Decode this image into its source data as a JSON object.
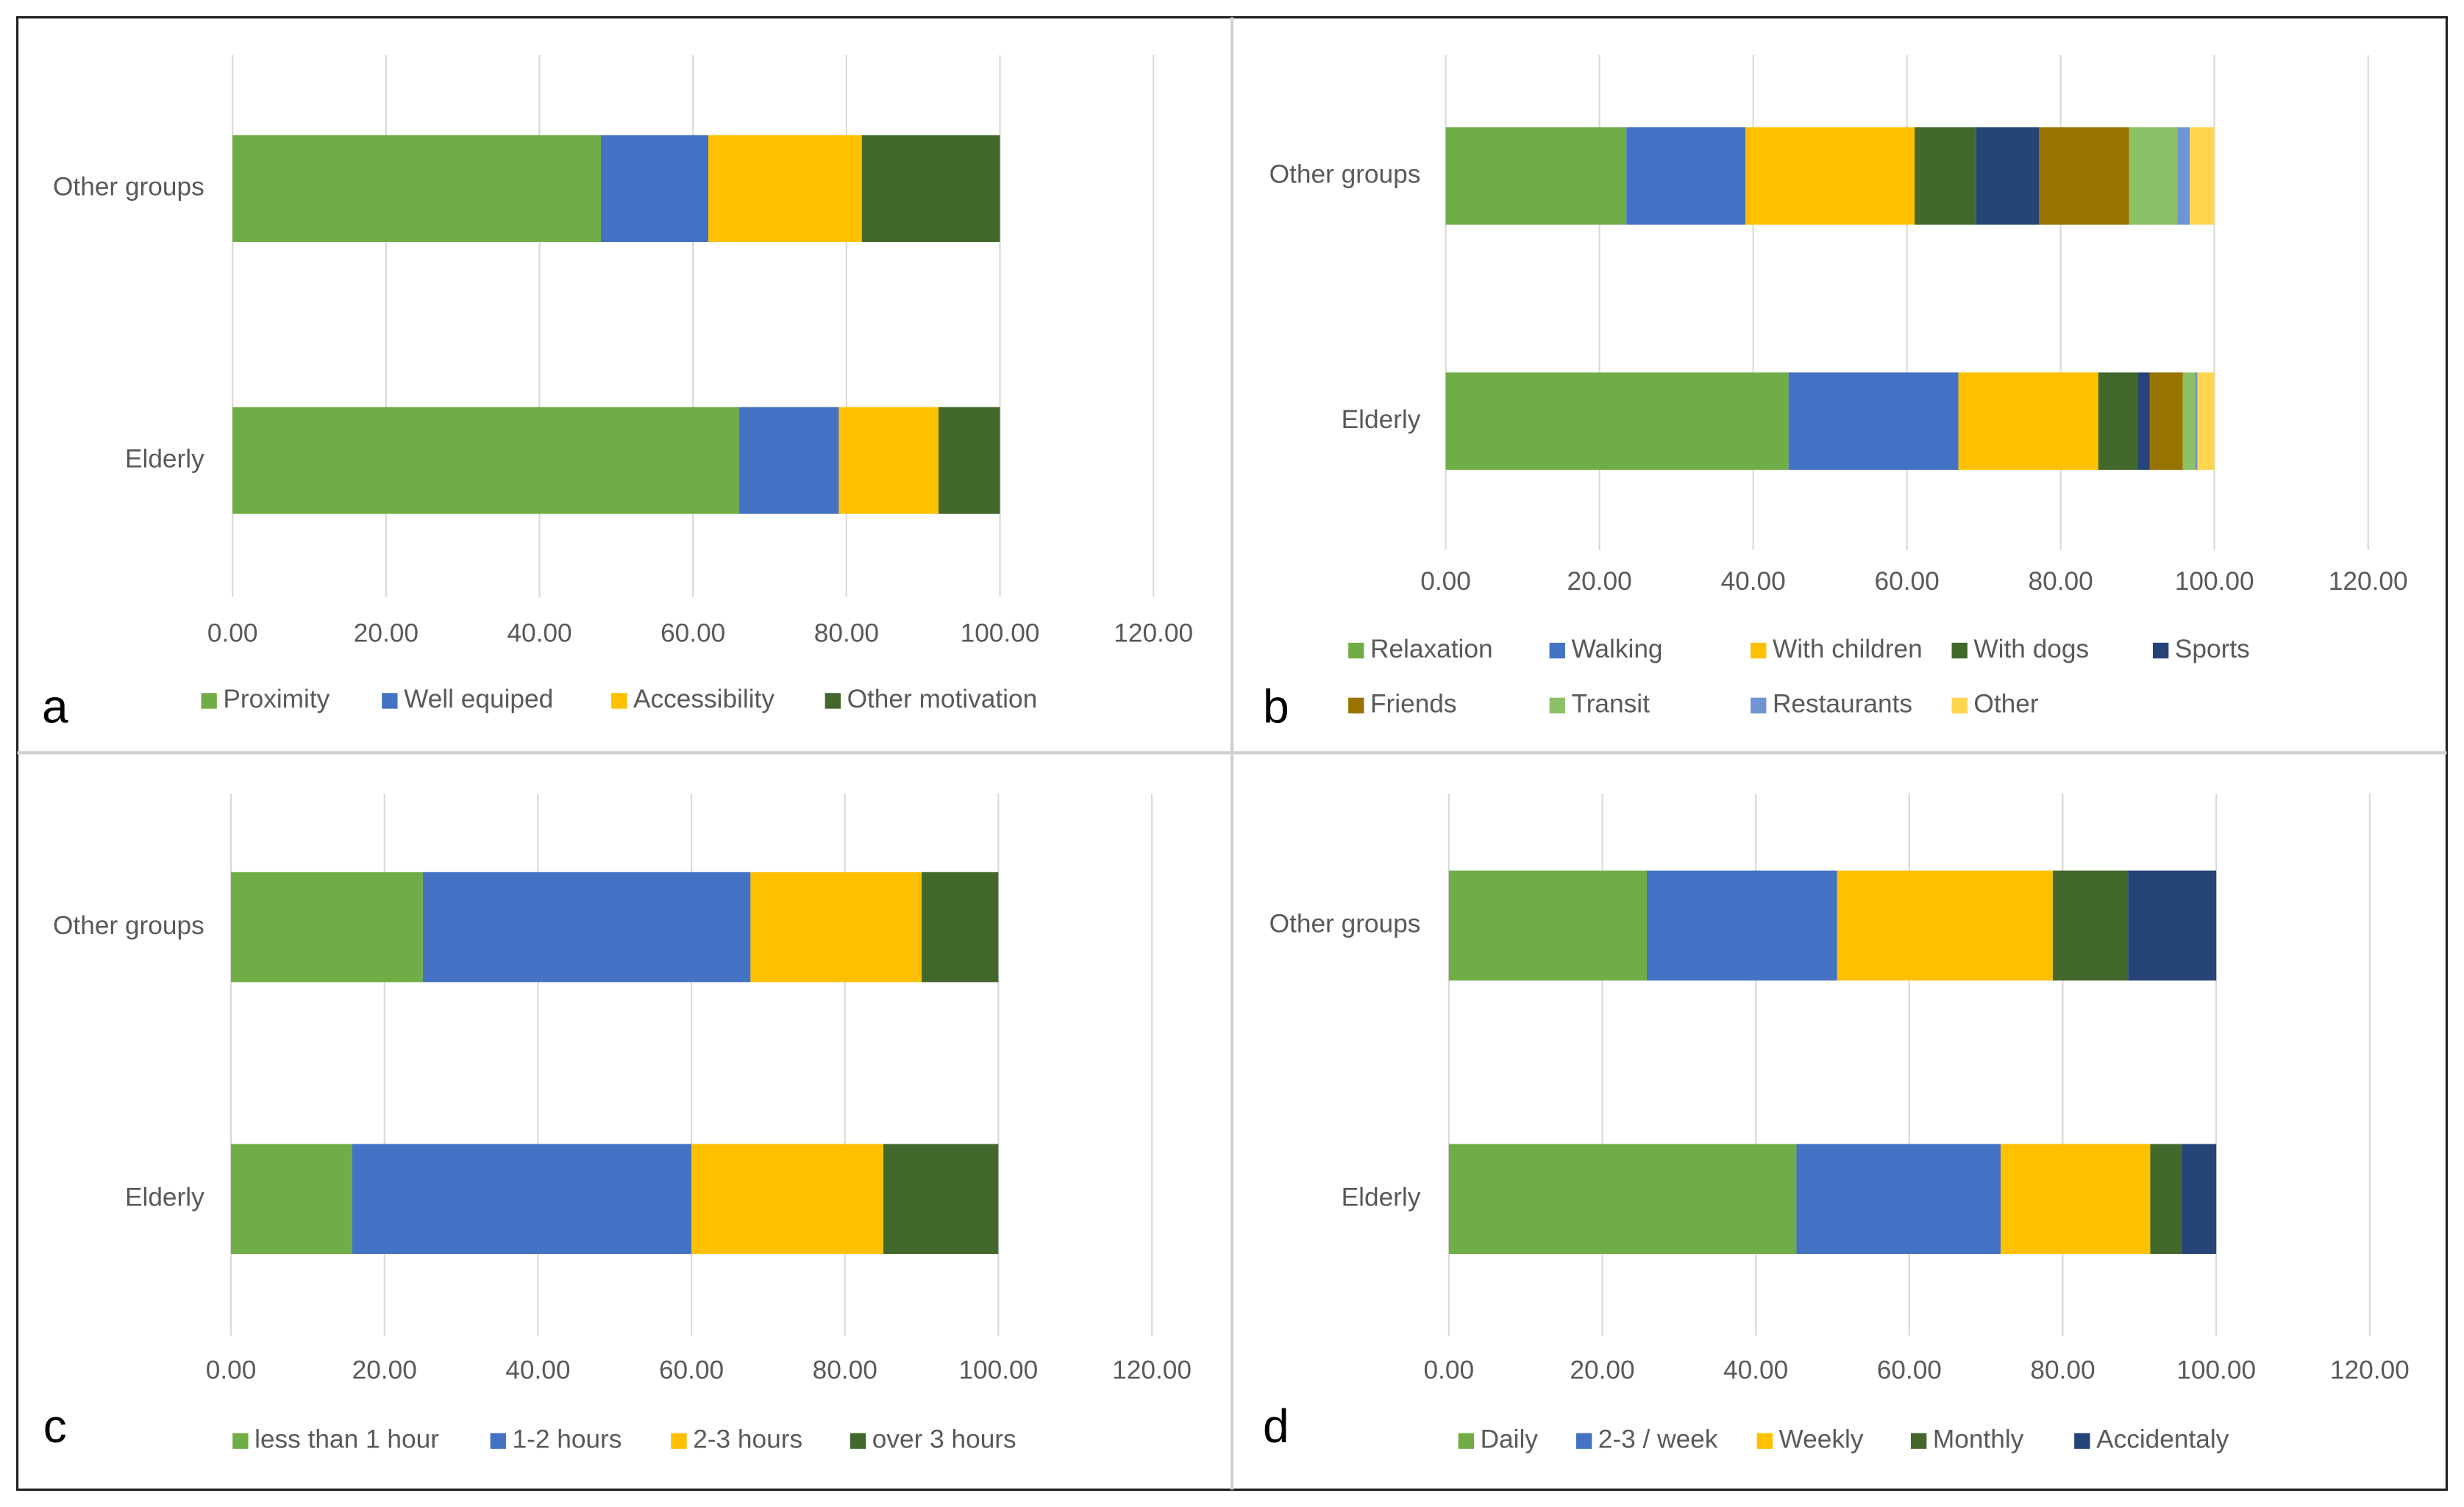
{
  "chart_data": [
    {
      "type": "bar",
      "orientation": "horizontal",
      "stacked": true,
      "grid": true,
      "panel_label": "a",
      "categories": [
        "Other groups",
        "Elderly"
      ],
      "series": [
        {
          "name": "Proximity",
          "color": "#70ad47",
          "values": [
            48,
            66
          ]
        },
        {
          "name": "Well equiped",
          "color": "#4472c4",
          "values": [
            14,
            13
          ]
        },
        {
          "name": "Accessibility",
          "color": "#ffc000",
          "values": [
            20,
            13
          ]
        },
        {
          "name": "Other motivation",
          "color": "#43682b",
          "values": [
            18,
            8
          ]
        }
      ],
      "xlim": [
        0,
        120
      ],
      "xticks": [
        {
          "value": 0,
          "label": "0.00"
        },
        {
          "value": 20,
          "label": "20.00"
        },
        {
          "value": 40,
          "label": "40.00"
        },
        {
          "value": 60,
          "label": "60.00"
        },
        {
          "value": 80,
          "label": "80.00"
        },
        {
          "value": 100,
          "label": "100.00"
        },
        {
          "value": 120,
          "label": "120.00"
        }
      ]
    },
    {
      "type": "bar",
      "orientation": "horizontal",
      "stacked": true,
      "grid": true,
      "panel_label": "b",
      "categories": [
        "Other groups",
        "Elderly"
      ],
      "series": [
        {
          "name": "Relaxation",
          "color": "#70ad47",
          "values": [
            23.5,
            44.6
          ]
        },
        {
          "name": "Walking",
          "color": "#4472c4",
          "values": [
            15.5,
            22.1
          ]
        },
        {
          "name": "With children",
          "color": "#ffc000",
          "values": [
            22,
            18.2
          ]
        },
        {
          "name": "With dogs",
          "color": "#43682b",
          "values": [
            8,
            5.1
          ]
        },
        {
          "name": "Sports",
          "color": "#264478",
          "values": [
            8.2,
            1.6
          ]
        },
        {
          "name": "Friends",
          "color": "#997300",
          "values": [
            11.7,
            4.3
          ]
        },
        {
          "name": "Transit",
          "color": "#8cc168",
          "values": [
            6.3,
            1.6
          ]
        },
        {
          "name": "Restaurants",
          "color": "#6f94d4",
          "values": [
            1.6,
            0.3
          ]
        },
        {
          "name": "Other",
          "color": "#ffd54f",
          "values": [
            3.2,
            2.2
          ]
        }
      ],
      "xlim": [
        0,
        120
      ],
      "xticks": [
        {
          "value": 0,
          "label": "0.00"
        },
        {
          "value": 20,
          "label": "20.00"
        },
        {
          "value": 40,
          "label": "40.00"
        },
        {
          "value": 60,
          "label": "60.00"
        },
        {
          "value": 80,
          "label": "80.00"
        },
        {
          "value": 100,
          "label": "100.00"
        },
        {
          "value": 120,
          "label": "120.00"
        }
      ]
    },
    {
      "type": "bar",
      "orientation": "horizontal",
      "stacked": true,
      "grid": true,
      "panel_label": "c",
      "categories": [
        "Other groups",
        "Elderly"
      ],
      "series": [
        {
          "name": "less than 1 hour",
          "color": "#70ad47",
          "values": [
            25,
            15.8
          ]
        },
        {
          "name": "1-2 hours",
          "color": "#4472c4",
          "values": [
            42.7,
            44.2
          ]
        },
        {
          "name": "2-3 hours",
          "color": "#ffc000",
          "values": [
            22.3,
            25
          ]
        },
        {
          "name": "over 3 hours",
          "color": "#43682b",
          "values": [
            10,
            15
          ]
        }
      ],
      "xlim": [
        0,
        120
      ],
      "xticks": [
        {
          "value": 0,
          "label": "0.00"
        },
        {
          "value": 20,
          "label": "20.00"
        },
        {
          "value": 40,
          "label": "40.00"
        },
        {
          "value": 60,
          "label": "60.00"
        },
        {
          "value": 80,
          "label": "80.00"
        },
        {
          "value": 100,
          "label": "100.00"
        },
        {
          "value": 120,
          "label": "120.00"
        }
      ]
    },
    {
      "type": "bar",
      "orientation": "horizontal",
      "stacked": true,
      "grid": true,
      "panel_label": "d",
      "categories": [
        "Other groups",
        "Elderly"
      ],
      "series": [
        {
          "name": "Daily",
          "color": "#70ad47",
          "values": [
            25.8,
            45.3
          ]
        },
        {
          "name": "2-3 / week",
          "color": "#4472c4",
          "values": [
            24.8,
            26.6
          ]
        },
        {
          "name": "Weekly",
          "color": "#ffc000",
          "values": [
            28.1,
            19.5
          ]
        },
        {
          "name": "Monthly",
          "color": "#43682b",
          "values": [
            9.8,
            4.1
          ]
        },
        {
          "name": "Accidentaly",
          "color": "#264478",
          "values": [
            11.5,
            4.5
          ]
        }
      ],
      "xlim": [
        0,
        120
      ],
      "xticks": [
        {
          "value": 0,
          "label": "0.00"
        },
        {
          "value": 20,
          "label": "20.00"
        },
        {
          "value": 40,
          "label": "40.00"
        },
        {
          "value": 60,
          "label": "60.00"
        },
        {
          "value": 80,
          "label": "80.00"
        },
        {
          "value": 100,
          "label": "100.00"
        },
        {
          "value": 120,
          "label": "120.00"
        }
      ]
    }
  ]
}
